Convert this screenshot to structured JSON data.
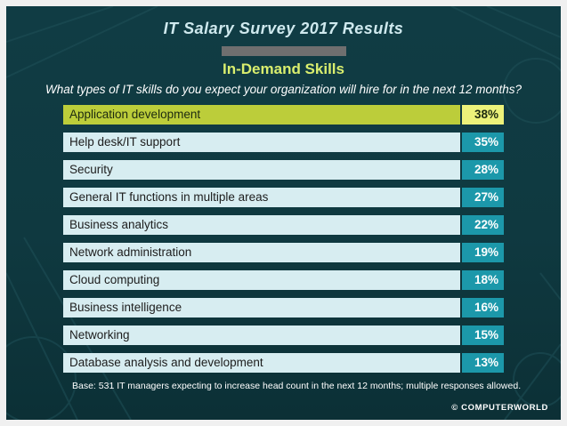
{
  "header": {
    "title": "IT Salary Survey 2017 Results",
    "subtitle": "In-Demand Skills",
    "question": "What types of IT skills do you expect your organization will hire for in the next 12 months?"
  },
  "footer": {
    "note": "Base: 531 IT managers expecting to increase head count in the next 12 months; multiple responses allowed.",
    "brand": "© COMPUTERWORLD"
  },
  "colors": {
    "background": "#103c44",
    "row_label_bg": "#d7edf1",
    "row_value_bg": "#1c98aa",
    "highlight_label_bg": "#bccd3a",
    "highlight_value_bg": "#ecf27a",
    "subtitle": "#d9ee6e"
  },
  "chart_data": {
    "type": "table",
    "title": "IT Salary Survey 2017 Results",
    "subtitle": "In-Demand Skills",
    "categories": [
      "Application development",
      "Help desk/IT support",
      "Security",
      "General IT functions in multiple areas",
      "Business analytics",
      "Network administration",
      "Cloud computing",
      "Business intelligence",
      "Networking",
      "Database analysis and development"
    ],
    "values": [
      38,
      35,
      28,
      27,
      22,
      19,
      18,
      16,
      15,
      13
    ],
    "value_labels": [
      "38%",
      "35%",
      "28%",
      "27%",
      "22%",
      "19%",
      "18%",
      "16%",
      "15%",
      "13%"
    ],
    "highlighted_index": 0
  }
}
